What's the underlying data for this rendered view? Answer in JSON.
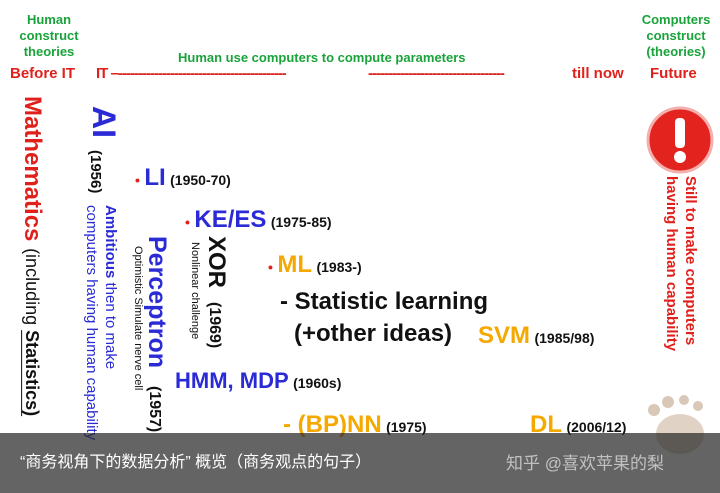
{
  "header": {
    "left_note": [
      "Human",
      "construct",
      "theories"
    ],
    "right_note": [
      "Computers",
      "construct",
      "(theories)"
    ],
    "banner": "Human use computers to compute parameters",
    "timeline": {
      "before": "Before IT",
      "it": "IT –------------------------------------------",
      "dashes": "----------------------------------",
      "till_now": "till now",
      "future": "Future"
    }
  },
  "columns": {
    "mathematics": {
      "title": "Mathematics",
      "note": " (including ",
      "emphasis": "Statistics)"
    },
    "ai": {
      "title": "AI",
      "year": "(1956)",
      "line1_bold": "Ambitious",
      "line1": " then to make",
      "line2": "computers  having human capability"
    },
    "perceptron": {
      "title": "Perceptron",
      "year": " (1957)",
      "note": "Optimistic Simulate nerve cell"
    },
    "xor": {
      "title": "XOR",
      "year": " (1969)",
      "note": "Nonlinear challenge"
    },
    "future": {
      "line1": "Still to make computers",
      "line2": "having human capability"
    }
  },
  "items": [
    {
      "marker": "•",
      "name": "LI",
      "date": "(1950-70)"
    },
    {
      "marker": "•",
      "name": "KE/ES",
      "date": "(1975-85)"
    },
    {
      "marker": "•",
      "name": "ML",
      "date": "(1983-)"
    },
    {
      "line1": "- Statistic learning",
      "line2": "(+other ideas)"
    },
    {
      "name": "SVM",
      "date": "(1985/98)"
    },
    {
      "name": "HMM, MDP",
      "date": "(1960s)"
    },
    {
      "name": "- (BP)NN",
      "date": "(1975)"
    },
    {
      "name": "DL",
      "date": "(2006/12)"
    }
  ],
  "footer": {
    "caption": "“商务视角下的数据分析” 概览（商务观点的句子）",
    "watermark": "知乎 @喜欢苹果的梨"
  }
}
